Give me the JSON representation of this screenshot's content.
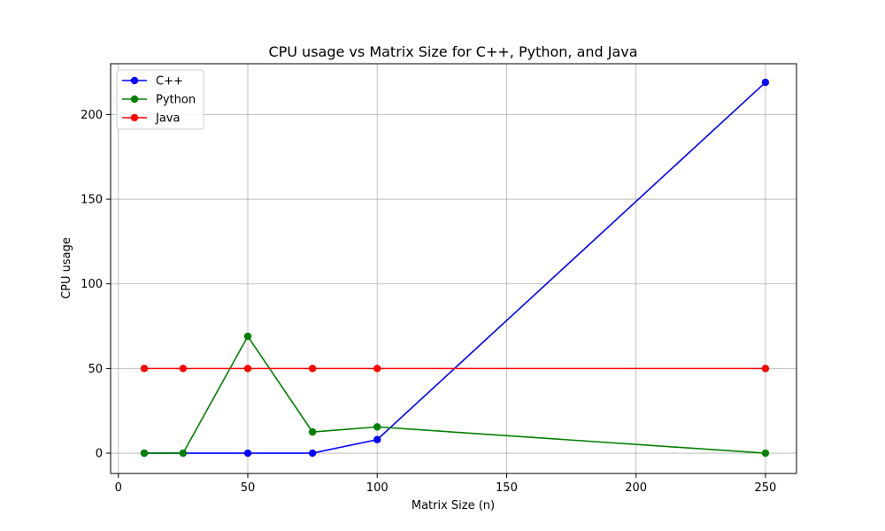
{
  "chart_data": {
    "type": "line",
    "title": "CPU usage vs Matrix Size for C++, Python, and Java",
    "xlabel": "Matrix Size (n)",
    "ylabel": "CPU usage",
    "xlim": [
      -3,
      262
    ],
    "ylim": [
      -12,
      230
    ],
    "xticks": [
      0,
      50,
      100,
      150,
      200,
      250
    ],
    "yticks": [
      0,
      50,
      100,
      150,
      200
    ],
    "grid": true,
    "legend_position": "top-left",
    "x": [
      10,
      25,
      50,
      75,
      100,
      250
    ],
    "series": [
      {
        "name": "C++",
        "color": "#0000ff",
        "values": [
          0,
          0,
          0,
          0,
          8,
          219
        ]
      },
      {
        "name": "Python",
        "color": "#008000",
        "values": [
          0,
          0,
          69,
          12.5,
          15.5,
          0
        ]
      },
      {
        "name": "Java",
        "color": "#ff0000",
        "values": [
          50,
          50,
          50,
          50,
          50,
          50
        ]
      }
    ]
  }
}
